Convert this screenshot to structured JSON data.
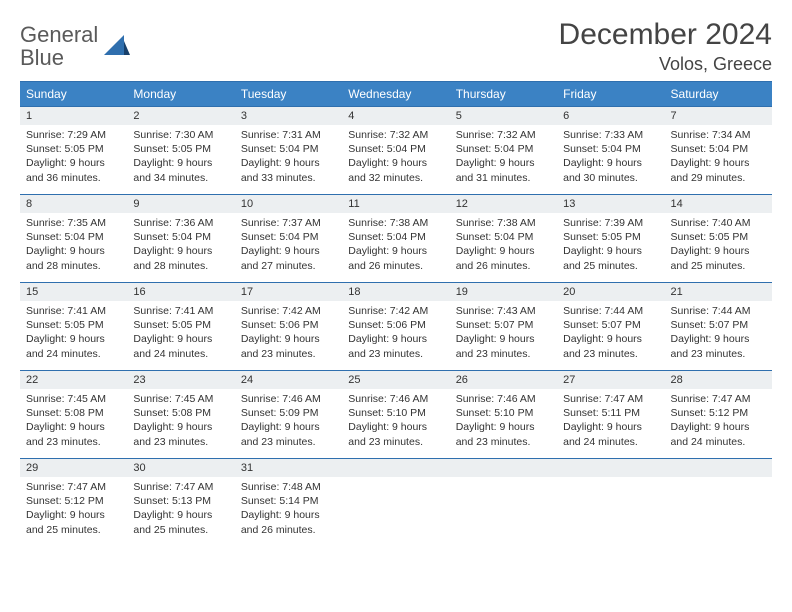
{
  "brand": {
    "name1": "General",
    "name2": "Blue"
  },
  "title": "December 2024",
  "location": "Volos, Greece",
  "colors": {
    "accent": "#3b82c4",
    "line": "#2f6fae",
    "dayBg": "#eceff1",
    "text": "#333333"
  },
  "weekdays": [
    "Sunday",
    "Monday",
    "Tuesday",
    "Wednesday",
    "Thursday",
    "Friday",
    "Saturday"
  ],
  "startWeekday": 0,
  "days": [
    {
      "n": 1,
      "sunrise": "7:29 AM",
      "sunset": "5:05 PM",
      "dayH": 9,
      "dayM": 36
    },
    {
      "n": 2,
      "sunrise": "7:30 AM",
      "sunset": "5:05 PM",
      "dayH": 9,
      "dayM": 34
    },
    {
      "n": 3,
      "sunrise": "7:31 AM",
      "sunset": "5:04 PM",
      "dayH": 9,
      "dayM": 33
    },
    {
      "n": 4,
      "sunrise": "7:32 AM",
      "sunset": "5:04 PM",
      "dayH": 9,
      "dayM": 32
    },
    {
      "n": 5,
      "sunrise": "7:32 AM",
      "sunset": "5:04 PM",
      "dayH": 9,
      "dayM": 31
    },
    {
      "n": 6,
      "sunrise": "7:33 AM",
      "sunset": "5:04 PM",
      "dayH": 9,
      "dayM": 30
    },
    {
      "n": 7,
      "sunrise": "7:34 AM",
      "sunset": "5:04 PM",
      "dayH": 9,
      "dayM": 29
    },
    {
      "n": 8,
      "sunrise": "7:35 AM",
      "sunset": "5:04 PM",
      "dayH": 9,
      "dayM": 28
    },
    {
      "n": 9,
      "sunrise": "7:36 AM",
      "sunset": "5:04 PM",
      "dayH": 9,
      "dayM": 28
    },
    {
      "n": 10,
      "sunrise": "7:37 AM",
      "sunset": "5:04 PM",
      "dayH": 9,
      "dayM": 27
    },
    {
      "n": 11,
      "sunrise": "7:38 AM",
      "sunset": "5:04 PM",
      "dayH": 9,
      "dayM": 26
    },
    {
      "n": 12,
      "sunrise": "7:38 AM",
      "sunset": "5:04 PM",
      "dayH": 9,
      "dayM": 26
    },
    {
      "n": 13,
      "sunrise": "7:39 AM",
      "sunset": "5:05 PM",
      "dayH": 9,
      "dayM": 25
    },
    {
      "n": 14,
      "sunrise": "7:40 AM",
      "sunset": "5:05 PM",
      "dayH": 9,
      "dayM": 25
    },
    {
      "n": 15,
      "sunrise": "7:41 AM",
      "sunset": "5:05 PM",
      "dayH": 9,
      "dayM": 24
    },
    {
      "n": 16,
      "sunrise": "7:41 AM",
      "sunset": "5:05 PM",
      "dayH": 9,
      "dayM": 24
    },
    {
      "n": 17,
      "sunrise": "7:42 AM",
      "sunset": "5:06 PM",
      "dayH": 9,
      "dayM": 23
    },
    {
      "n": 18,
      "sunrise": "7:42 AM",
      "sunset": "5:06 PM",
      "dayH": 9,
      "dayM": 23
    },
    {
      "n": 19,
      "sunrise": "7:43 AM",
      "sunset": "5:07 PM",
      "dayH": 9,
      "dayM": 23
    },
    {
      "n": 20,
      "sunrise": "7:44 AM",
      "sunset": "5:07 PM",
      "dayH": 9,
      "dayM": 23
    },
    {
      "n": 21,
      "sunrise": "7:44 AM",
      "sunset": "5:07 PM",
      "dayH": 9,
      "dayM": 23
    },
    {
      "n": 22,
      "sunrise": "7:45 AM",
      "sunset": "5:08 PM",
      "dayH": 9,
      "dayM": 23
    },
    {
      "n": 23,
      "sunrise": "7:45 AM",
      "sunset": "5:08 PM",
      "dayH": 9,
      "dayM": 23
    },
    {
      "n": 24,
      "sunrise": "7:46 AM",
      "sunset": "5:09 PM",
      "dayH": 9,
      "dayM": 23
    },
    {
      "n": 25,
      "sunrise": "7:46 AM",
      "sunset": "5:10 PM",
      "dayH": 9,
      "dayM": 23
    },
    {
      "n": 26,
      "sunrise": "7:46 AM",
      "sunset": "5:10 PM",
      "dayH": 9,
      "dayM": 23
    },
    {
      "n": 27,
      "sunrise": "7:47 AM",
      "sunset": "5:11 PM",
      "dayH": 9,
      "dayM": 24
    },
    {
      "n": 28,
      "sunrise": "7:47 AM",
      "sunset": "5:12 PM",
      "dayH": 9,
      "dayM": 24
    },
    {
      "n": 29,
      "sunrise": "7:47 AM",
      "sunset": "5:12 PM",
      "dayH": 9,
      "dayM": 25
    },
    {
      "n": 30,
      "sunrise": "7:47 AM",
      "sunset": "5:13 PM",
      "dayH": 9,
      "dayM": 25
    },
    {
      "n": 31,
      "sunrise": "7:48 AM",
      "sunset": "5:14 PM",
      "dayH": 9,
      "dayM": 26
    }
  ],
  "labels": {
    "sunrise": "Sunrise:",
    "sunset": "Sunset:",
    "daylight": "Daylight:",
    "hours": "hours",
    "and": "and",
    "minutes": "minutes."
  }
}
